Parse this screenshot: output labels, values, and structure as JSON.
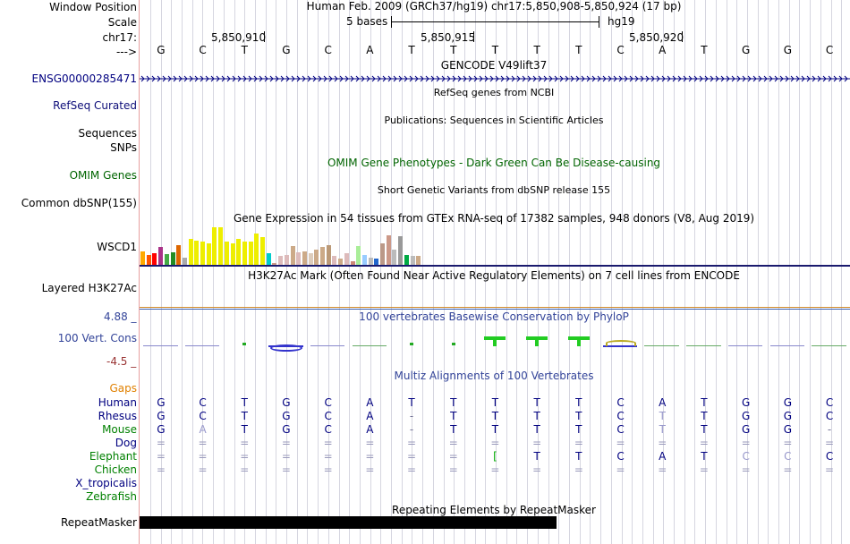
{
  "ruler": {
    "window_position_label": "Window Position",
    "window_position_text": "Human Feb. 2009 (GRCh37/hg19)   chr17:5,850,908-5,850,924 (17 bp)",
    "scale_label": "Scale",
    "scale_bases": "5 bases",
    "scale_assembly": "hg19",
    "chrom_label": "chr17:",
    "positions": [
      "5,850,910",
      "5,850,915",
      "5,850,920"
    ],
    "strand_label": "--->",
    "bases": [
      "G",
      "C",
      "T",
      "G",
      "C",
      "A",
      "T",
      "T",
      "T",
      "T",
      "T",
      "C",
      "A",
      "T",
      "G",
      "G",
      "C"
    ]
  },
  "gencode": {
    "title": "GENCODE V49lift37",
    "transcript_label": "ENSG00000285471"
  },
  "refseq": {
    "title": "RefSeq genes from NCBI",
    "label": "RefSeq Curated"
  },
  "publications": {
    "title": "Publications: Sequences in Scientific Articles",
    "label": "Sequences"
  },
  "snps_label": "SNPs",
  "omim": {
    "title": "OMIM Gene Phenotypes - Dark Green Can Be Disease-causing",
    "label": "OMIM Genes"
  },
  "dbsnp": {
    "title": "Short Genetic Variants from dbSNP release 155",
    "label": "Common dbSNP(155)"
  },
  "gtex": {
    "title": "Gene Expression in 54 tissues from GTEx RNA-seq of 17382 samples, 948 donors (V8, Aug 2019)",
    "gene_label": "WSCD1",
    "bars": [
      {
        "v": 0.35,
        "c": "#ffaa00"
      },
      {
        "v": 0.25,
        "c": "#ff5500"
      },
      {
        "v": 0.3,
        "c": "#ff0000"
      },
      {
        "v": 0.45,
        "c": "#aa3388"
      },
      {
        "v": 0.28,
        "c": "#44aa44"
      },
      {
        "v": 0.32,
        "c": "#228b22"
      },
      {
        "v": 0.5,
        "c": "#dd6600"
      },
      {
        "v": 0.18,
        "c": "#aaaaaa"
      },
      {
        "v": 0.65,
        "c": "#eeee00"
      },
      {
        "v": 0.62,
        "c": "#eeee00"
      },
      {
        "v": 0.58,
        "c": "#eeee00"
      },
      {
        "v": 0.55,
        "c": "#eeee00"
      },
      {
        "v": 0.95,
        "c": "#eeee00"
      },
      {
        "v": 0.95,
        "c": "#eeee00"
      },
      {
        "v": 0.6,
        "c": "#eeee00"
      },
      {
        "v": 0.55,
        "c": "#eeee00"
      },
      {
        "v": 0.65,
        "c": "#eeee00"
      },
      {
        "v": 0.6,
        "c": "#eeee00"
      },
      {
        "v": 0.58,
        "c": "#eeee00"
      },
      {
        "v": 0.8,
        "c": "#eeee00"
      },
      {
        "v": 0.7,
        "c": "#eeee00"
      },
      {
        "v": 0.3,
        "c": "#00cccc"
      },
      {
        "v": 0.05,
        "c": "#cc9988"
      },
      {
        "v": 0.22,
        "c": "#ddbbbb"
      },
      {
        "v": 0.25,
        "c": "#ddbbbb"
      },
      {
        "v": 0.48,
        "c": "#ccaa88"
      },
      {
        "v": 0.32,
        "c": "#ddbbbb"
      },
      {
        "v": 0.35,
        "c": "#ccaa88"
      },
      {
        "v": 0.3,
        "c": "#ddccbb"
      },
      {
        "v": 0.38,
        "c": "#ccaa88"
      },
      {
        "v": 0.45,
        "c": "#ccaa88"
      },
      {
        "v": 0.5,
        "c": "#bb9977"
      },
      {
        "v": 0.22,
        "c": "#ddbbbb"
      },
      {
        "v": 0.15,
        "c": "#ccaa88"
      },
      {
        "v": 0.3,
        "c": "#ddbbbb"
      },
      {
        "v": 0.1,
        "c": "#cc8877"
      },
      {
        "v": 0.48,
        "c": "#aaee99"
      },
      {
        "v": 0.25,
        "c": "#99ccff"
      },
      {
        "v": 0.18,
        "c": "#bbbbbb"
      },
      {
        "v": 0.15,
        "c": "#2266cc"
      },
      {
        "v": 0.55,
        "c": "#bb9988"
      },
      {
        "v": 0.75,
        "c": "#cc9988"
      },
      {
        "v": 0.38,
        "c": "#bbbbbb"
      },
      {
        "v": 0.72,
        "c": "#999999"
      },
      {
        "v": 0.25,
        "c": "#00aa44"
      },
      {
        "v": 0.22,
        "c": "#bbbbbb"
      },
      {
        "v": 0.22,
        "c": "#ccaa88"
      }
    ]
  },
  "h3k27ac": {
    "title": "H3K27Ac Mark (Often Found Near Active Regulatory Elements) on 7 cell lines from ENCODE",
    "label": "Layered H3K27Ac"
  },
  "conservation": {
    "title": "100 vertebrates Basewise Conservation by PhyloP",
    "label": "100 Vert. Cons",
    "max_label": "4.88 _",
    "min_label": "-4.5 _",
    "scores": [
      -0.2,
      -0.4,
      0.3,
      -0.5,
      -0.2,
      0.05,
      0.3,
      0.4,
      1.0,
      1.0,
      1.0,
      -0.6,
      0.1,
      0.05,
      -0.2,
      -0.3,
      0.1
    ]
  },
  "multiz": {
    "title": "Multiz Alignments of 100 Vertebrates",
    "gaps_label": "Gaps",
    "species": [
      {
        "name": "Human",
        "row": [
          "G",
          "C",
          "T",
          "G",
          "C",
          "A",
          "T",
          "T",
          "T",
          "T",
          "T",
          "C",
          "A",
          "T",
          "G",
          "G",
          "C"
        ]
      },
      {
        "name": "Rhesus",
        "row": [
          "G",
          "C",
          "T",
          "G",
          "C",
          "A",
          "-",
          "T",
          "T",
          "T",
          "T",
          "C",
          "T",
          "T",
          "G",
          "G",
          "C"
        ]
      },
      {
        "name": "Mouse",
        "row": [
          "G",
          "A",
          "T",
          "G",
          "C",
          "A",
          "-",
          "T",
          "T",
          "T",
          "T",
          "C",
          "T",
          "T",
          "G",
          "G",
          "-"
        ]
      },
      {
        "name": "Dog",
        "row": [
          "=",
          "=",
          "=",
          "=",
          "=",
          "=",
          "=",
          "=",
          "=",
          "=",
          "=",
          "=",
          "=",
          "=",
          "=",
          "=",
          "="
        ]
      },
      {
        "name": "Elephant",
        "row": [
          "=",
          "=",
          "=",
          "=",
          "=",
          "=",
          "=",
          "=",
          "[",
          "T",
          "T",
          "C",
          "A",
          "T",
          "C",
          "C",
          "C"
        ]
      },
      {
        "name": "Chicken",
        "row": [
          "=",
          "=",
          "=",
          "=",
          "=",
          "=",
          "=",
          "=",
          "=",
          "=",
          "=",
          "=",
          "=",
          "=",
          "=",
          "=",
          "="
        ]
      },
      {
        "name": "X_tropicalis",
        "row": [
          "",
          "",
          "",
          "",
          "",
          "",
          "",
          "",
          "",
          "",
          "",
          "",
          "",
          "",
          "",
          "",
          ""
        ]
      },
      {
        "name": "Zebrafish",
        "row": [
          "",
          "",
          "",
          "",
          "",
          "",
          "",
          "",
          "",
          "",
          "",
          "",
          "",
          "",
          "",
          "",
          ""
        ]
      }
    ]
  },
  "repeatmasker": {
    "title": "Repeating Elements by RepeatMasker",
    "label": "RepeatMasker"
  },
  "colors": {
    "label_blue": "#000080",
    "refseq_label": "#0c0c78",
    "omim_green": "#006400",
    "gaps_orange": "#e08000",
    "species_green": "#008000",
    "conservation_blue": "#334499"
  }
}
